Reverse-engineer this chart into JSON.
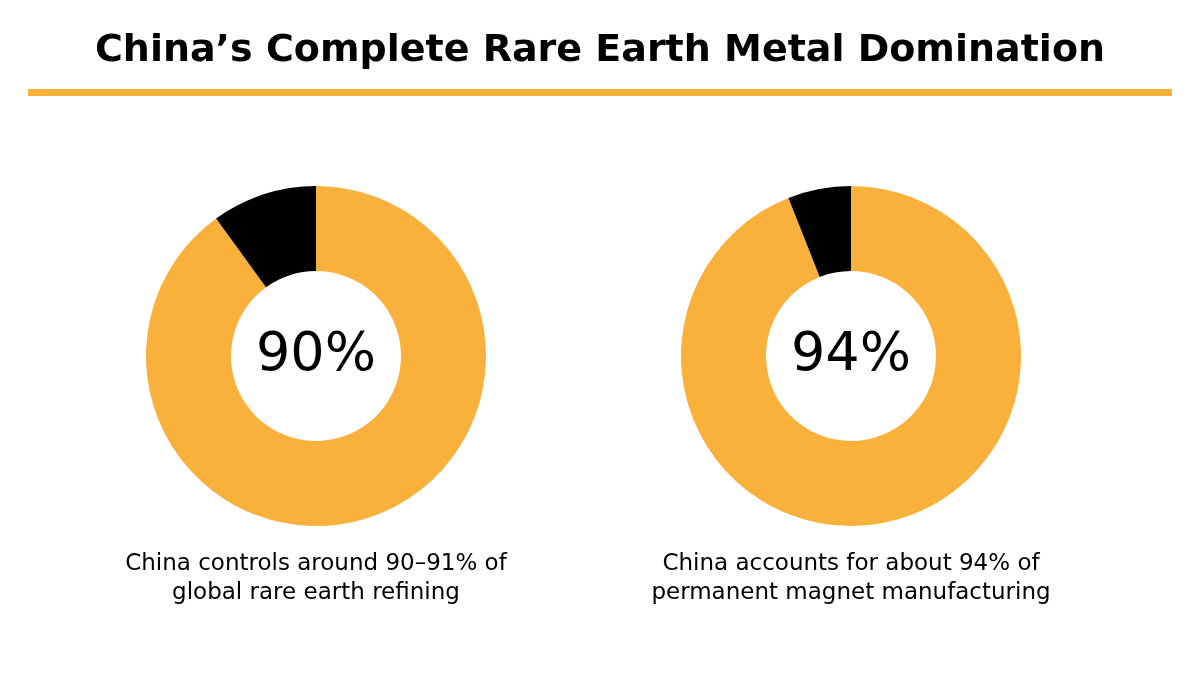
{
  "chart_data": [
    {
      "type": "donut",
      "title": "China’s Complete Rare Earth Metal Domination",
      "categories": [
        null,
        null
      ],
      "values": [
        90,
        10
      ],
      "colors": [
        "#f9b13b",
        "#000000"
      ],
      "value_labels": [
        "90%",
        null
      ],
      "legend": false,
      "annotations": [
        "China controls around 90–91% of global rare earth refining"
      ]
    },
    {
      "type": "donut",
      "categories": [
        null,
        null
      ],
      "values": [
        94,
        6
      ],
      "colors": [
        "#f9b13b",
        "#000000"
      ],
      "value_labels": [
        "94%",
        null
      ],
      "legend": false,
      "annotations": [
        "China accounts for about 94% of permanent magnet manufacturing"
      ]
    }
  ]
}
